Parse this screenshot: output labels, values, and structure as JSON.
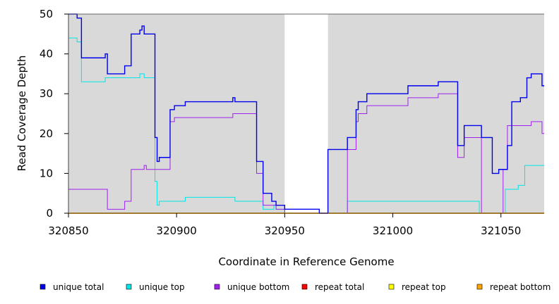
{
  "chart_data": {
    "type": "line",
    "xlabel": "Coordinate in Reference Genome",
    "ylabel": "Read Coverage Depth",
    "xlim": [
      320850,
      321070
    ],
    "ylim": [
      0,
      50
    ],
    "x_ticks": [
      320850,
      320900,
      320950,
      321000,
      321050
    ],
    "y_ticks": [
      0,
      10,
      20,
      30,
      40,
      50
    ],
    "x_tick_labels": [
      "320850",
      "320900",
      "320950",
      "321000",
      "321050"
    ],
    "y_tick_labels": [
      "0",
      "10",
      "20",
      "30",
      "40",
      "50"
    ],
    "background_color": "#d9d9d9",
    "unshaded_region": [
      320950,
      320970
    ],
    "grid": false,
    "legend_position": "bottom",
    "series": [
      {
        "name": "unique total",
        "color": "#0000ee",
        "points": [
          [
            320850,
            50
          ],
          [
            320854,
            50
          ],
          [
            320854,
            49
          ],
          [
            320856,
            49
          ],
          [
            320856,
            39
          ],
          [
            320867,
            39
          ],
          [
            320867,
            40
          ],
          [
            320868,
            40
          ],
          [
            320868,
            35
          ],
          [
            320876,
            35
          ],
          [
            320876,
            37
          ],
          [
            320879,
            37
          ],
          [
            320879,
            45
          ],
          [
            320883,
            45
          ],
          [
            320883,
            46
          ],
          [
            320884,
            46
          ],
          [
            320884,
            47
          ],
          [
            320885,
            47
          ],
          [
            320885,
            45
          ],
          [
            320890,
            45
          ],
          [
            320890,
            19
          ],
          [
            320891,
            19
          ],
          [
            320891,
            13
          ],
          [
            320892,
            13
          ],
          [
            320892,
            14
          ],
          [
            320897,
            14
          ],
          [
            320897,
            26
          ],
          [
            320899,
            26
          ],
          [
            320899,
            27
          ],
          [
            320904,
            27
          ],
          [
            320904,
            28
          ],
          [
            320926,
            28
          ],
          [
            320926,
            29
          ],
          [
            320927,
            29
          ],
          [
            320927,
            28
          ],
          [
            320937,
            28
          ],
          [
            320937,
            13
          ],
          [
            320940,
            13
          ],
          [
            320940,
            5
          ],
          [
            320944,
            5
          ],
          [
            320944,
            3
          ],
          [
            320946,
            3
          ],
          [
            320946,
            2
          ],
          [
            320950,
            2
          ],
          [
            320950,
            1
          ],
          [
            320966,
            1
          ],
          [
            320966,
            0
          ],
          [
            320970,
            0
          ],
          [
            320970,
            16
          ],
          [
            320979,
            16
          ],
          [
            320979,
            19
          ],
          [
            320983,
            19
          ],
          [
            320983,
            26
          ],
          [
            320984,
            26
          ],
          [
            320984,
            28
          ],
          [
            320988,
            28
          ],
          [
            320988,
            30
          ],
          [
            321007,
            30
          ],
          [
            321007,
            32
          ],
          [
            321021,
            32
          ],
          [
            321021,
            33
          ],
          [
            321030,
            33
          ],
          [
            321030,
            17
          ],
          [
            321033,
            17
          ],
          [
            321033,
            22
          ],
          [
            321041,
            22
          ],
          [
            321041,
            19
          ],
          [
            321046,
            19
          ],
          [
            321046,
            10
          ],
          [
            321049,
            10
          ],
          [
            321049,
            11
          ],
          [
            321053,
            11
          ],
          [
            321053,
            17
          ],
          [
            321055,
            17
          ],
          [
            321055,
            28
          ],
          [
            321059,
            28
          ],
          [
            321059,
            29
          ],
          [
            321062,
            29
          ],
          [
            321062,
            34
          ],
          [
            321064,
            34
          ],
          [
            321064,
            35
          ],
          [
            321069,
            35
          ],
          [
            321069,
            32
          ],
          [
            321070,
            32
          ]
        ]
      },
      {
        "name": "unique top",
        "color": "#00e5e5",
        "points": [
          [
            320850,
            44
          ],
          [
            320854,
            44
          ],
          [
            320854,
            43
          ],
          [
            320856,
            43
          ],
          [
            320856,
            33
          ],
          [
            320867,
            33
          ],
          [
            320867,
            34
          ],
          [
            320883,
            34
          ],
          [
            320883,
            35
          ],
          [
            320885,
            35
          ],
          [
            320885,
            34
          ],
          [
            320890,
            34
          ],
          [
            320890,
            8
          ],
          [
            320891,
            8
          ],
          [
            320891,
            2
          ],
          [
            320892,
            2
          ],
          [
            320892,
            3
          ],
          [
            320904,
            3
          ],
          [
            320904,
            4
          ],
          [
            320927,
            4
          ],
          [
            320927,
            3
          ],
          [
            320940,
            3
          ],
          [
            320940,
            1
          ],
          [
            320945,
            1
          ],
          [
            320945,
            2
          ],
          [
            320946,
            2
          ],
          [
            320946,
            1
          ],
          [
            320950,
            1
          ],
          [
            320950,
            0
          ],
          [
            320979,
            0
          ],
          [
            320979,
            3
          ],
          [
            321040,
            3
          ],
          [
            321040,
            0
          ],
          [
            321052,
            0
          ],
          [
            321052,
            6
          ],
          [
            321058,
            6
          ],
          [
            321058,
            7
          ],
          [
            321061,
            7
          ],
          [
            321061,
            12
          ],
          [
            321070,
            12
          ]
        ]
      },
      {
        "name": "unique bottom",
        "color": "#a020f0",
        "points": [
          [
            320850,
            6
          ],
          [
            320868,
            6
          ],
          [
            320868,
            1
          ],
          [
            320876,
            1
          ],
          [
            320876,
            3
          ],
          [
            320879,
            3
          ],
          [
            320879,
            11
          ],
          [
            320885,
            11
          ],
          [
            320885,
            12
          ],
          [
            320886,
            12
          ],
          [
            320886,
            11
          ],
          [
            320897,
            11
          ],
          [
            320897,
            23
          ],
          [
            320899,
            23
          ],
          [
            320899,
            24
          ],
          [
            320926,
            24
          ],
          [
            320926,
            25
          ],
          [
            320937,
            25
          ],
          [
            320937,
            10
          ],
          [
            320940,
            10
          ],
          [
            320940,
            2
          ],
          [
            320946,
            2
          ],
          [
            320946,
            1
          ],
          [
            320950,
            1
          ],
          [
            320950,
            0
          ],
          [
            320979,
            0
          ],
          [
            320979,
            16
          ],
          [
            320983,
            16
          ],
          [
            320983,
            23
          ],
          [
            320984,
            23
          ],
          [
            320984,
            25
          ],
          [
            320988,
            25
          ],
          [
            320988,
            27
          ],
          [
            321007,
            27
          ],
          [
            321007,
            29
          ],
          [
            321021,
            29
          ],
          [
            321021,
            30
          ],
          [
            321030,
            30
          ],
          [
            321030,
            14
          ],
          [
            321033,
            14
          ],
          [
            321033,
            19
          ],
          [
            321041,
            19
          ],
          [
            321041,
            0
          ],
          [
            321051,
            0
          ],
          [
            321051,
            11
          ],
          [
            321053,
            11
          ],
          [
            321053,
            22
          ],
          [
            321064,
            22
          ],
          [
            321064,
            23
          ],
          [
            321069,
            23
          ],
          [
            321069,
            20
          ],
          [
            321070,
            20
          ]
        ]
      },
      {
        "name": "repeat total",
        "color": "#ff0000",
        "points": [
          [
            320850,
            0
          ],
          [
            321070,
            0
          ]
        ]
      },
      {
        "name": "repeat top",
        "color": "#ffff00",
        "points": [
          [
            320850,
            0
          ],
          [
            321070,
            0
          ]
        ]
      },
      {
        "name": "repeat bottom",
        "color": "#ffa500",
        "points": [
          [
            320850,
            0
          ],
          [
            321070,
            0
          ]
        ]
      }
    ]
  }
}
